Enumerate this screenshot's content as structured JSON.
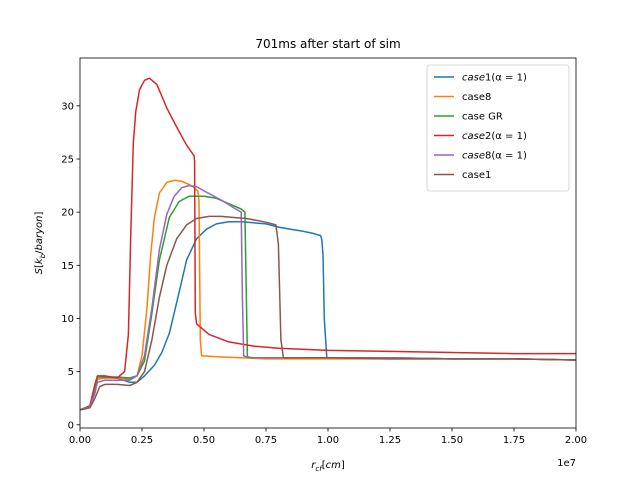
{
  "chart_data": {
    "type": "line",
    "title": "701ms after start of sim",
    "xlabel": "r_cf[cm]",
    "ylabel": "S[k_b/baryon]",
    "x_offset_text": "1e7",
    "xlim": [
      0,
      20000000
    ],
    "ylim": [
      -0.3,
      34.5
    ],
    "x_ticks": [
      0,
      2500000,
      5000000,
      7500000,
      10000000,
      12500000,
      15000000,
      17500000,
      20000000
    ],
    "x_tick_labels": [
      "0.00",
      "0.25",
      "0.50",
      "0.75",
      "1.00",
      "1.25",
      "1.50",
      "1.75",
      "2.00"
    ],
    "y_ticks": [
      0,
      5,
      10,
      15,
      20,
      25,
      30
    ],
    "y_tick_labels": [
      "0",
      "5",
      "10",
      "15",
      "20",
      "25",
      "30"
    ],
    "grid": false,
    "legend_position": "top-right",
    "series": [
      {
        "name": "case1(α = 1)",
        "color": "#1f77b4",
        "x": [
          0,
          400000,
          600000,
          700000,
          1000000,
          1500000,
          2000000,
          2300000,
          2600000,
          3000000,
          3300000,
          3600000,
          4000000,
          4300000,
          4700000,
          5100000,
          5500000,
          6000000,
          6500000,
          7000000,
          7500000,
          8000000,
          8500000,
          9000000,
          9400000,
          9700000,
          9750000,
          9800000,
          9850000,
          9950000,
          10000000,
          11000000,
          12500000,
          15000000,
          17500000,
          20000000
        ],
        "y": [
          1.4,
          1.7,
          3.0,
          4.3,
          4.4,
          4.4,
          4.0,
          4.0,
          4.6,
          5.6,
          6.8,
          8.6,
          12.5,
          15.5,
          17.5,
          18.4,
          18.9,
          19.1,
          19.1,
          19.0,
          18.9,
          18.6,
          18.4,
          18.2,
          18.0,
          17.8,
          17.4,
          16.0,
          10.0,
          6.3,
          6.3,
          6.3,
          6.3,
          6.2,
          6.2,
          6.1
        ]
      },
      {
        "name": "case8",
        "color": "#ff7f0e",
        "x": [
          0,
          400000,
          600000,
          700000,
          1000000,
          1500000,
          2000000,
          2300000,
          2500000,
          2700000,
          2850000,
          3000000,
          3200000,
          3500000,
          3800000,
          4100000,
          4400000,
          4600000,
          4750000,
          4800000,
          4850000,
          4900000,
          5500000,
          6500000,
          7500000,
          10000000,
          12500000,
          15000000,
          17500000,
          20000000
        ],
        "y": [
          1.4,
          1.7,
          3.2,
          4.3,
          4.4,
          4.4,
          4.3,
          4.6,
          6.5,
          11.0,
          16.0,
          19.5,
          21.8,
          22.8,
          23.0,
          22.9,
          22.6,
          22.3,
          22.0,
          21.0,
          8.0,
          6.5,
          6.4,
          6.3,
          6.2,
          6.2,
          6.2,
          6.2,
          6.2,
          6.1
        ]
      },
      {
        "name": "case GR",
        "color": "#2ca02c",
        "x": [
          0,
          400000,
          600000,
          700000,
          1000000,
          1500000,
          2000000,
          2300000,
          2600000,
          2900000,
          3200000,
          3600000,
          4000000,
          4400000,
          5000000,
          5500000,
          6000000,
          6500000,
          6650000,
          6700000,
          6750000,
          6900000,
          7500000,
          10000000,
          12500000,
          15000000,
          17500000,
          20000000
        ],
        "y": [
          1.4,
          1.7,
          3.5,
          4.5,
          4.5,
          4.5,
          4.4,
          4.6,
          6.0,
          10.5,
          15.5,
          19.5,
          21.0,
          21.5,
          21.5,
          21.3,
          20.8,
          20.3,
          20.0,
          13.0,
          6.4,
          6.3,
          6.3,
          6.3,
          6.3,
          6.2,
          6.2,
          6.1
        ]
      },
      {
        "name": "case2(α = 1)",
        "color": "#d62728",
        "x": [
          0,
          400000,
          600000,
          700000,
          1000000,
          1500000,
          1800000,
          1950000,
          2050000,
          2150000,
          2250000,
          2400000,
          2600000,
          2800000,
          3100000,
          3500000,
          3900000,
          4300000,
          4600000,
          4620000,
          4650000,
          4700000,
          5200000,
          6000000,
          7000000,
          8000000,
          10000000,
          12500000,
          15000000,
          17500000,
          20000000
        ],
        "y": [
          1.4,
          1.8,
          3.8,
          4.6,
          4.6,
          4.4,
          5.0,
          8.5,
          18.0,
          26.5,
          29.5,
          31.5,
          32.4,
          32.6,
          32.0,
          29.8,
          28.0,
          26.3,
          25.3,
          24.8,
          10.5,
          9.5,
          8.5,
          7.8,
          7.4,
          7.2,
          7.0,
          6.9,
          6.8,
          6.7,
          6.7
        ]
      },
      {
        "name": "case8(α = 1)",
        "color": "#9467bd",
        "x": [
          0,
          400000,
          600000,
          700000,
          1000000,
          1500000,
          2000000,
          2300000,
          2600000,
          2900000,
          3200000,
          3500000,
          3800000,
          4100000,
          4400000,
          4700000,
          5000000,
          5400000,
          5800000,
          6200000,
          6500000,
          6550000,
          6600000,
          6700000,
          7000000,
          10000000,
          12500000,
          15000000,
          17500000,
          20000000
        ],
        "y": [
          1.4,
          1.7,
          3.0,
          4.0,
          4.2,
          4.2,
          4.2,
          4.6,
          6.5,
          11.0,
          16.5,
          19.8,
          21.5,
          22.3,
          22.5,
          22.4,
          22.0,
          21.5,
          21.0,
          20.4,
          20.0,
          12.0,
          6.5,
          6.4,
          6.3,
          6.3,
          6.3,
          6.2,
          6.2,
          6.1
        ]
      },
      {
        "name": "case1",
        "color": "#8c564b",
        "x": [
          0,
          400000,
          600000,
          800000,
          1000000,
          1500000,
          2000000,
          2300000,
          2600000,
          2900000,
          3200000,
          3500000,
          3900000,
          4300000,
          4700000,
          5200000,
          5700000,
          6200000,
          6700000,
          7200000,
          7600000,
          7900000,
          8000000,
          8100000,
          8200000,
          8400000,
          10000000,
          12500000,
          15000000,
          17500000,
          20000000
        ],
        "y": [
          1.4,
          1.6,
          2.5,
          3.6,
          3.8,
          3.8,
          3.7,
          4.0,
          5.0,
          8.0,
          12.0,
          15.0,
          17.5,
          18.8,
          19.4,
          19.6,
          19.6,
          19.5,
          19.4,
          19.2,
          19.0,
          18.8,
          17.0,
          8.0,
          6.3,
          6.3,
          6.3,
          6.2,
          6.2,
          6.2,
          6.1
        ]
      }
    ]
  }
}
